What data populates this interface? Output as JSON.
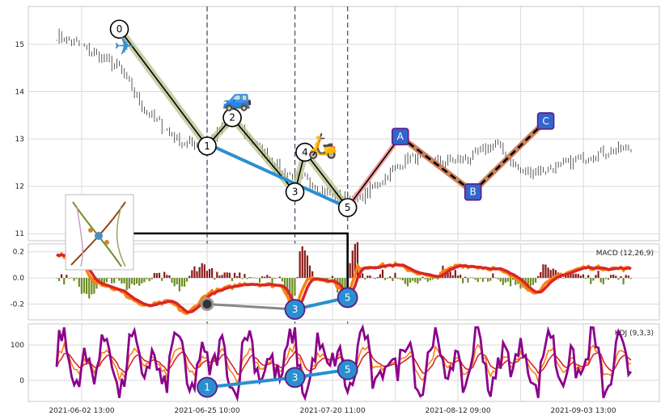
{
  "colors": {
    "candle": "#333333",
    "wave_main": "#000000",
    "wave_highlight": "#b7c08a",
    "blue_line": "#2a8fd0",
    "pink": "#f4a0a0",
    "brown": "#c8744a",
    "label_blue": "#3366cc",
    "label_border": "#5a1e86",
    "macd_line": "#ff7f0e",
    "signal_line": "#d62728",
    "hist_pos": "#8b1a1a",
    "hist_neg": "#6b8e23",
    "kdj_k": "#ff7f0e",
    "kdj_d": "#d62728",
    "kdj_j": "#8b008b",
    "grey_line": "#888888",
    "guide": "#4b5f7a"
  },
  "chart_data": [
    {
      "type": "candlestick",
      "panel": "price",
      "xlabels": [
        "2021-06-02 13:00",
        "2021-06-25 10:00",
        "2021-07-20 11:00",
        "2021-08-12 09:00",
        "2021-09-03 13:00"
      ],
      "xlabel_idx": [
        10,
        60,
        110,
        160,
        210
      ],
      "ylim": [
        10.85,
        15.8
      ],
      "yticks": [
        11,
        12,
        13,
        14,
        15
      ],
      "n_bars": 230,
      "price_anchors": [
        [
          0,
          15.2
        ],
        [
          12,
          14.9
        ],
        [
          25,
          14.5
        ],
        [
          35,
          13.6
        ],
        [
          50,
          12.9
        ],
        [
          60,
          12.9
        ],
        [
          70,
          13.4
        ],
        [
          90,
          12.3
        ],
        [
          100,
          12.1
        ],
        [
          110,
          11.8
        ],
        [
          120,
          11.7
        ],
        [
          140,
          12.6
        ],
        [
          155,
          12.5
        ],
        [
          165,
          12.6
        ],
        [
          175,
          12.9
        ],
        [
          185,
          12.3
        ],
        [
          200,
          12.4
        ],
        [
          215,
          12.7
        ],
        [
          229,
          12.8
        ]
      ],
      "vlines": [
        60,
        95,
        116
      ],
      "wave_points": [
        {
          "label": "0",
          "x": 25,
          "y": 15.32
        },
        {
          "label": "1",
          "x": 60,
          "y": 12.85
        },
        {
          "label": "2",
          "x": 70,
          "y": 13.45
        },
        {
          "label": "3",
          "x": 95,
          "y": 11.88
        },
        {
          "label": "4",
          "x": 99,
          "y": 12.72
        },
        {
          "label": "5",
          "x": 116,
          "y": 11.55
        }
      ],
      "abc_points": [
        {
          "label": "A",
          "x": 137,
          "y": 13.05
        },
        {
          "label": "B",
          "x": 166,
          "y": 11.88
        },
        {
          "label": "C",
          "x": 195,
          "y": 13.38
        }
      ],
      "blue_segment": {
        "from": [
          60,
          12.9
        ],
        "to": [
          116,
          11.55
        ]
      },
      "vehicles": [
        {
          "name": "airplane",
          "glyph": "✈",
          "x": 27,
          "y": 14.95
        },
        {
          "name": "car",
          "glyph": "🚙",
          "x": 72,
          "y": 13.85
        },
        {
          "name": "scooter",
          "glyph": "🛵",
          "x": 106,
          "y": 12.85
        }
      ]
    },
    {
      "type": "line",
      "panel": "macd",
      "title": "MACD (12,26,9)",
      "ylim": [
        -0.32,
        0.26
      ],
      "yticks": [
        -0.2,
        0.0,
        0.2
      ],
      "anchors": [
        [
          0,
          0.18
        ],
        [
          8,
          0.16
        ],
        [
          15,
          -0.02
        ],
        [
          25,
          -0.1
        ],
        [
          35,
          -0.22
        ],
        [
          45,
          -0.18
        ],
        [
          52,
          -0.28
        ],
        [
          60,
          -0.12
        ],
        [
          75,
          -0.04
        ],
        [
          90,
          -0.06
        ],
        [
          95,
          -0.25
        ],
        [
          100,
          0.0
        ],
        [
          110,
          -0.02
        ],
        [
          116,
          -0.15
        ],
        [
          120,
          0.08
        ],
        [
          135,
          0.1
        ],
        [
          150,
          0.0
        ],
        [
          160,
          0.1
        ],
        [
          175,
          0.07
        ],
        [
          185,
          -0.02
        ],
        [
          190,
          -0.12
        ],
        [
          200,
          0.02
        ],
        [
          210,
          0.08
        ],
        [
          229,
          0.07
        ]
      ],
      "blue_points": [
        {
          "label": "3",
          "x": 95,
          "y": -0.24
        },
        {
          "label": "5",
          "x": 116,
          "y": -0.15
        }
      ],
      "grey_point": {
        "x": 60,
        "y": -0.2
      }
    },
    {
      "type": "line",
      "panel": "kdj",
      "title": "KDJ (9,3,3)",
      "ylim": [
        -60,
        160
      ],
      "yticks": [
        0,
        100
      ],
      "blue_points": [
        {
          "label": "1",
          "x": 60,
          "y": -20
        },
        {
          "label": "3",
          "x": 95,
          "y": 8
        },
        {
          "label": "5",
          "x": 116,
          "y": 30
        }
      ]
    }
  ]
}
